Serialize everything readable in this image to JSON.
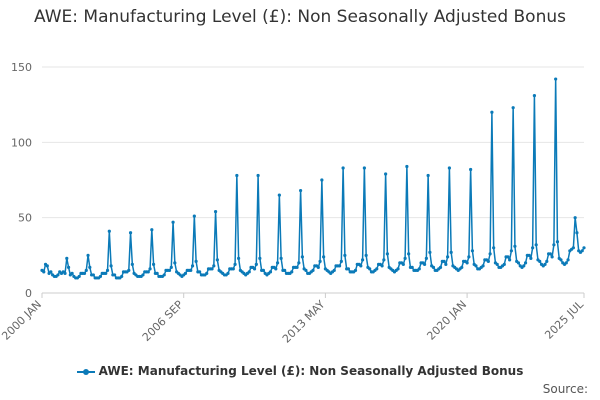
{
  "chart_data": {
    "type": "line",
    "title": "AWE: Manufacturing Level (£): Non Seasonally Adjusted Bonus",
    "xlabel": "",
    "ylabel": "",
    "ylim": [
      0,
      150
    ],
    "yticks": [
      "0",
      "50",
      "100",
      "150"
    ],
    "xticks": [
      "2000 JAN",
      "2006 SEP",
      "2013 MAY",
      "2020 JAN",
      "2025 JUL"
    ],
    "grid": true,
    "legend_position": "bottom",
    "x_start": "2000 JAN",
    "x_end": "2025 JUL",
    "x_unit": "month",
    "series": [
      {
        "name": "AWE: Manufacturing Level (£): Non Seasonally Adjusted Bonus",
        "color": "#0b7ab8",
        "values": [
          15,
          14,
          19,
          18,
          13,
          14,
          12,
          11,
          11,
          12,
          14,
          13,
          14,
          13,
          23,
          17,
          12,
          13,
          11,
          10,
          10,
          11,
          13,
          13,
          13,
          15,
          25,
          17,
          12,
          12,
          10,
          10,
          10,
          11,
          13,
          13,
          13,
          15,
          41,
          18,
          12,
          12,
          10,
          10,
          10,
          11,
          14,
          14,
          14,
          15,
          40,
          19,
          13,
          12,
          11,
          11,
          11,
          12,
          14,
          14,
          14,
          16,
          42,
          19,
          13,
          13,
          11,
          11,
          11,
          12,
          15,
          15,
          15,
          17,
          47,
          20,
          14,
          13,
          12,
          11,
          12,
          13,
          15,
          15,
          15,
          18,
          51,
          21,
          14,
          14,
          12,
          12,
          12,
          13,
          16,
          16,
          16,
          18,
          54,
          22,
          15,
          14,
          13,
          12,
          12,
          13,
          16,
          16,
          16,
          19,
          78,
          23,
          15,
          14,
          13,
          12,
          13,
          14,
          17,
          17,
          16,
          19,
          78,
          23,
          15,
          15,
          13,
          12,
          13,
          14,
          17,
          17,
          16,
          20,
          65,
          23,
          15,
          15,
          13,
          13,
          13,
          14,
          17,
          17,
          17,
          20,
          68,
          24,
          16,
          15,
          13,
          13,
          14,
          15,
          18,
          18,
          17,
          21,
          75,
          24,
          16,
          15,
          14,
          13,
          14,
          15,
          18,
          18,
          18,
          21,
          83,
          25,
          16,
          16,
          14,
          14,
          14,
          15,
          19,
          19,
          18,
          22,
          83,
          25,
          17,
          16,
          14,
          14,
          15,
          16,
          19,
          19,
          18,
          22,
          79,
          26,
          17,
          16,
          15,
          14,
          15,
          16,
          20,
          20,
          19,
          23,
          84,
          26,
          17,
          17,
          15,
          15,
          15,
          16,
          20,
          20,
          19,
          23,
          78,
          27,
          18,
          17,
          15,
          15,
          16,
          17,
          21,
          21,
          19,
          24,
          83,
          27,
          18,
          17,
          16,
          15,
          16,
          17,
          21,
          21,
          20,
          24,
          82,
          28,
          19,
          18,
          16,
          16,
          17,
          18,
          22,
          22,
          21,
          26,
          120,
          30,
          20,
          19,
          17,
          17,
          18,
          19,
          24,
          24,
          22,
          28,
          123,
          31,
          21,
          20,
          18,
          17,
          18,
          20,
          25,
          25,
          23,
          30,
          131,
          32,
          22,
          21,
          19,
          18,
          19,
          21,
          26,
          26,
          24,
          32,
          142,
          34,
          23,
          22,
          20,
          19,
          20,
          22,
          28,
          29,
          30,
          50,
          40,
          28,
          27,
          28,
          30
        ]
      }
    ]
  },
  "legend": {
    "label": "AWE: Manufacturing Level (£): Non Seasonally Adjusted Bonus"
  },
  "source_label": "Source:"
}
